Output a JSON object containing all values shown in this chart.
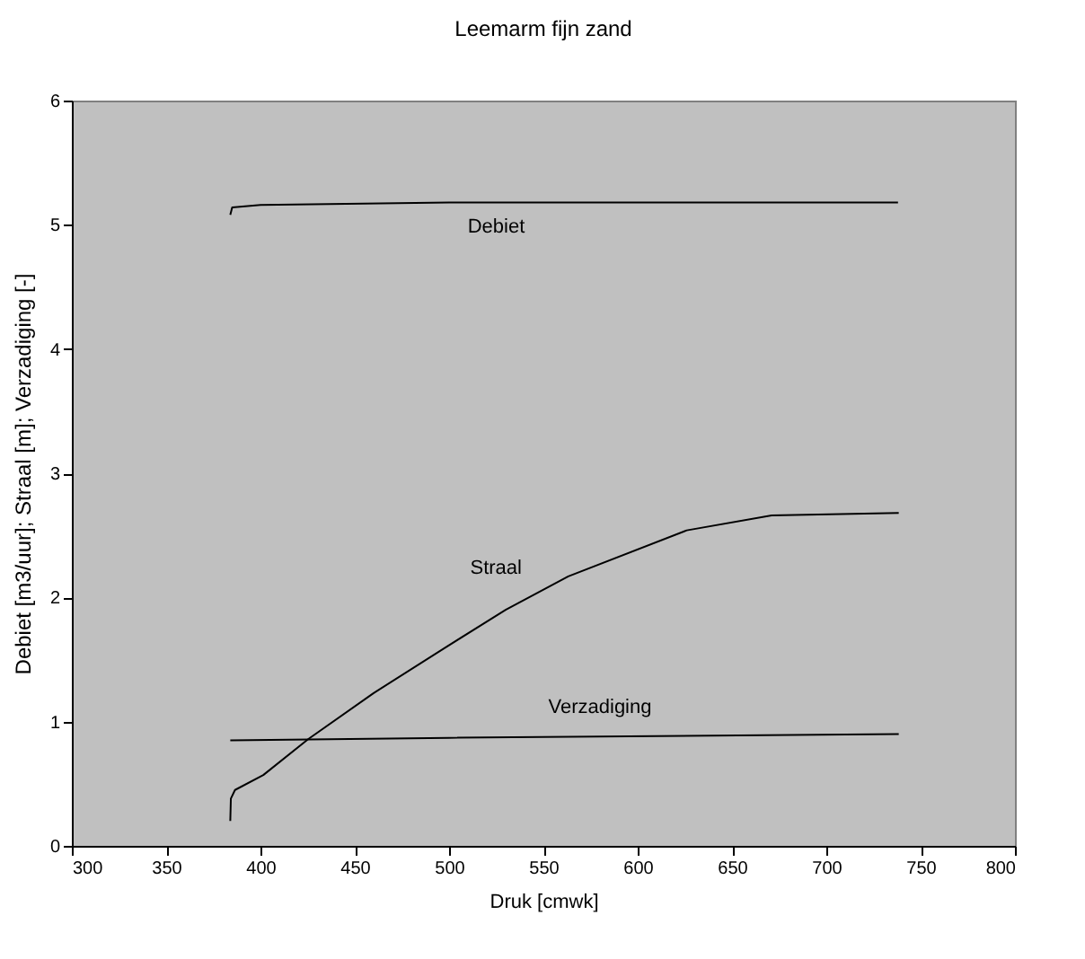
{
  "chart_data": {
    "type": "line",
    "title": "Leemarm fijn zand",
    "xlabel": "Druk [cmwk]",
    "ylabel": "Debiet [m3/uur]; Straal [m]; Verzadiging [-]",
    "xlim": [
      300,
      800
    ],
    "xticks": [
      300,
      350,
      400,
      450,
      500,
      550,
      600,
      650,
      700,
      750,
      800
    ],
    "ylim": [
      0,
      6
    ],
    "yticks": [
      0,
      1,
      2,
      3,
      4,
      5,
      6
    ],
    "grid": false,
    "legend": false,
    "marker": "none",
    "line_style": "solid",
    "series": [
      {
        "name": "Debiet",
        "color": "#000000",
        "x": [
          384,
          385,
          400,
          500,
          738
        ],
        "values": [
          5.08,
          5.14,
          5.16,
          5.18,
          5.18
        ]
      },
      {
        "name": "Straal",
        "color": "#000000",
        "x": [
          384,
          384.3,
          386.5,
          401.5,
          425.4,
          460,
          497.3,
          530,
          563.2,
          626,
          671,
          738.4
        ],
        "values": [
          0.2,
          0.38,
          0.45,
          0.57,
          0.86,
          1.23,
          1.59,
          1.9,
          2.17,
          2.54,
          2.66,
          2.68
        ]
      },
      {
        "name": "Verzadiging",
        "color": "#000000",
        "x": [
          384,
          500,
          738.4
        ],
        "values": [
          0.85,
          0.87,
          0.9
        ]
      }
    ]
  }
}
